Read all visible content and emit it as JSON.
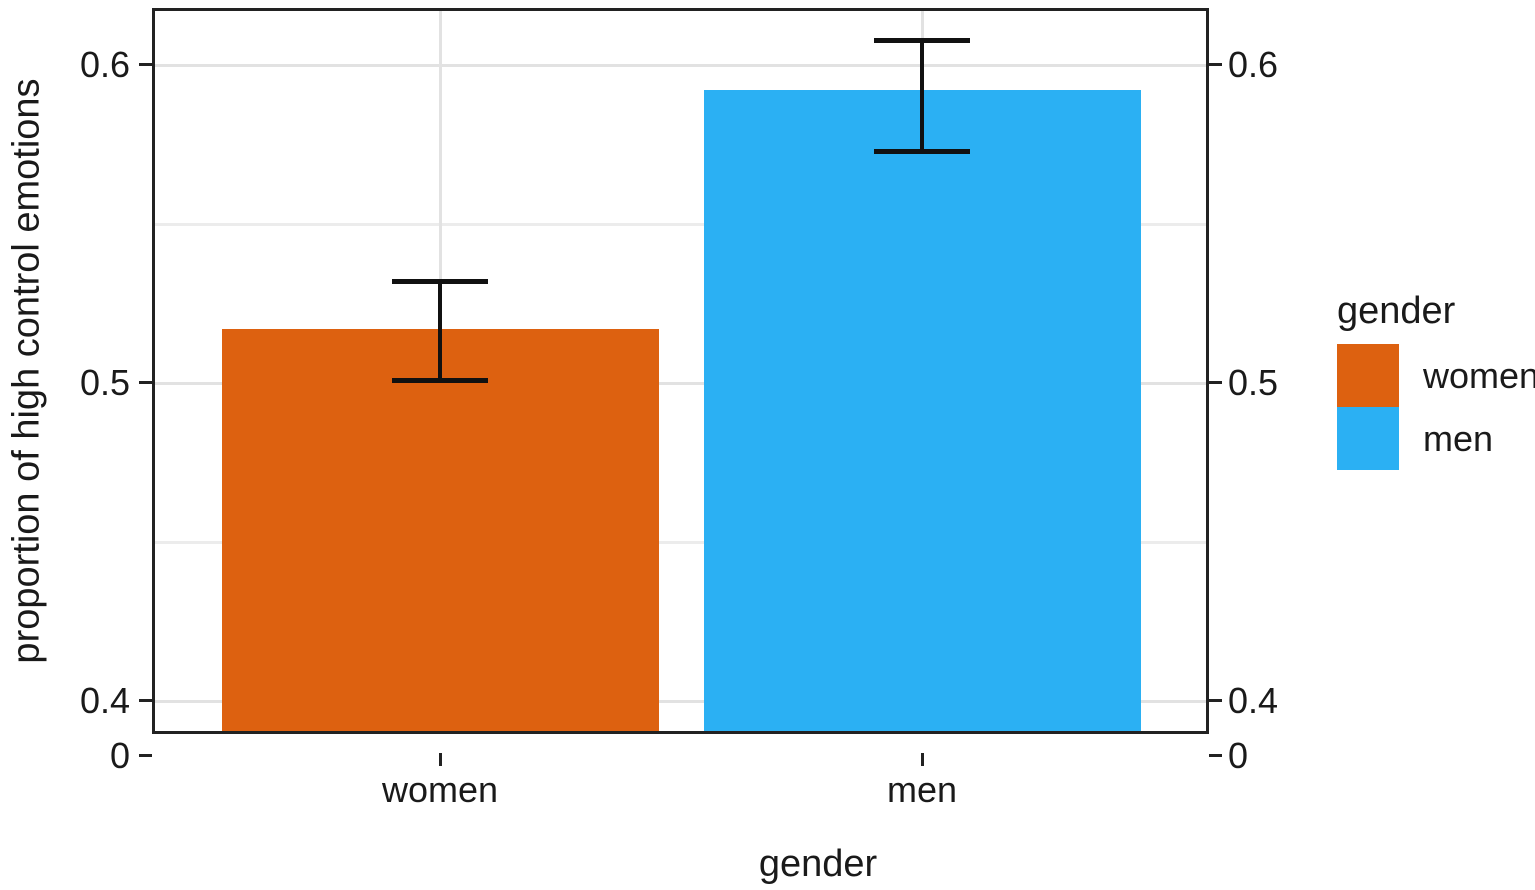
{
  "figure": {
    "background": "#FFFFFF",
    "x_axis_title": "gender",
    "y_axis_title": "proportion of high control emotions",
    "y_tick_labels": [
      "0.6",
      "0.5",
      "0.4"
    ],
    "y_zero_label": "0",
    "x_tick_labels": [
      "women",
      "men"
    ]
  },
  "legend": {
    "title": "gender",
    "entries": [
      {
        "label": "women",
        "color": "#DD6110"
      },
      {
        "label": "men",
        "color": "#2BB0F3"
      }
    ]
  },
  "chart_data": {
    "type": "bar",
    "title": "",
    "xlabel": "gender",
    "ylabel": "proportion of high control emotions",
    "categories": [
      "women",
      "men"
    ],
    "values": [
      0.517,
      0.592
    ],
    "ci_low": [
      0.501,
      0.573
    ],
    "ci_high": [
      0.532,
      0.608
    ],
    "bar_colors": [
      "#DD6110",
      "#2BB0F3"
    ],
    "error_bar_color": "#111111",
    "y_major_ticks": [
      0.4,
      0.5,
      0.6
    ],
    "y_minor_ticks": [
      0.45,
      0.55
    ],
    "y_axis_break_label": "0",
    "ylim_displayed": [
      0.388,
      0.617
    ],
    "dual_y_axis": true,
    "grid": true,
    "grid_major_color": "#E2E2E2",
    "grid_minor_color": "#ECECEC",
    "legend_position": "right"
  }
}
